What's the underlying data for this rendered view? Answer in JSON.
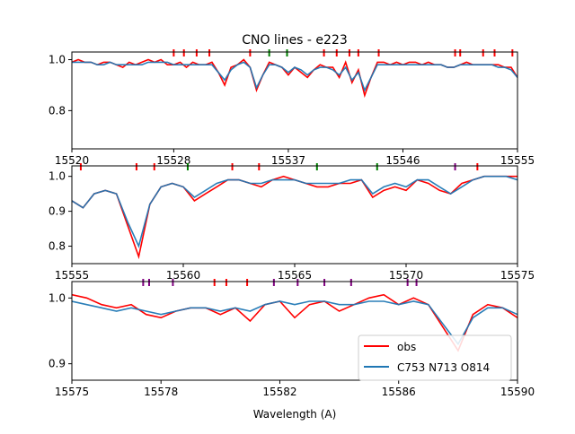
{
  "figure": {
    "title": "CNO lines - e223",
    "xlabel": "Wavelength (A)"
  },
  "colors": {
    "obs": "#ff0000",
    "model": "#1f77b4",
    "line_C": "#ff0000",
    "line_N": "#008000",
    "line_O": "#800080",
    "axes": "#000000"
  },
  "legend": {
    "placement": "lower-right",
    "entries": [
      {
        "label": "obs",
        "color": "#ff0000"
      },
      {
        "label": "C753 N713 O814",
        "color": "#1f77b4"
      }
    ]
  },
  "chart_data": [
    {
      "type": "line",
      "title": "CNO lines - e223",
      "xlim": [
        15520,
        15555
      ],
      "ylim": [
        0.65,
        1.03
      ],
      "xticks": [
        15520,
        15528,
        15537,
        15546,
        15555
      ],
      "yticks": [
        0.8,
        1.0
      ],
      "grid": false,
      "line_markers": [
        {
          "x": 15528.0,
          "color": "#ff0000"
        },
        {
          "x": 15528.8,
          "color": "#ff0000"
        },
        {
          "x": 15529.8,
          "color": "#ff0000"
        },
        {
          "x": 15530.8,
          "color": "#ff0000"
        },
        {
          "x": 15534.0,
          "color": "#ff0000"
        },
        {
          "x": 15535.5,
          "color": "#008000"
        },
        {
          "x": 15536.9,
          "color": "#008000"
        },
        {
          "x": 15539.8,
          "color": "#ff0000"
        },
        {
          "x": 15540.8,
          "color": "#ff0000"
        },
        {
          "x": 15541.8,
          "color": "#ff0000"
        },
        {
          "x": 15542.5,
          "color": "#ff0000"
        },
        {
          "x": 15544.1,
          "color": "#ff0000"
        },
        {
          "x": 15550.1,
          "color": "#ff0000"
        },
        {
          "x": 15550.5,
          "color": "#ff0000"
        },
        {
          "x": 15552.3,
          "color": "#ff0000"
        },
        {
          "x": 15553.2,
          "color": "#ff0000"
        },
        {
          "x": 15554.6,
          "color": "#ff0000"
        }
      ],
      "series": [
        {
          "name": "obs",
          "color": "#ff0000",
          "x": [
            15520,
            15520.5,
            15521,
            15521.5,
            15522,
            15522.5,
            15523,
            15523.5,
            15524,
            15524.5,
            15525,
            15525.5,
            15526,
            15526.5,
            15527,
            15527.5,
            15528,
            15528.5,
            15529,
            15529.5,
            15530,
            15530.5,
            15531,
            15531.5,
            15532,
            15532.5,
            15533,
            15533.5,
            15534,
            15534.5,
            15535,
            15535.5,
            15536,
            15536.5,
            15537,
            15537.5,
            15538,
            15538.5,
            15539,
            15539.5,
            15540,
            15540.5,
            15541,
            15541.5,
            15542,
            15542.5,
            15543,
            15543.5,
            15544,
            15544.5,
            15545,
            15545.5,
            15546,
            15546.5,
            15547,
            15547.5,
            15548,
            15548.5,
            15549,
            15549.5,
            15550,
            15550.5,
            15551,
            15551.5,
            15552,
            15552.5,
            15553,
            15553.5,
            15554,
            15554.5,
            15555
          ],
          "y": [
            0.99,
            1.0,
            0.99,
            0.99,
            0.98,
            0.99,
            0.99,
            0.98,
            0.97,
            0.99,
            0.98,
            0.99,
            1.0,
            0.99,
            1.0,
            0.98,
            0.98,
            0.99,
            0.97,
            0.99,
            0.98,
            0.98,
            0.99,
            0.95,
            0.9,
            0.97,
            0.98,
            1.0,
            0.97,
            0.88,
            0.94,
            0.99,
            0.98,
            0.97,
            0.94,
            0.97,
            0.95,
            0.93,
            0.96,
            0.98,
            0.97,
            0.97,
            0.93,
            0.99,
            0.91,
            0.96,
            0.86,
            0.93,
            0.99,
            0.99,
            0.98,
            0.99,
            0.98,
            0.99,
            0.99,
            0.98,
            0.99,
            0.98,
            0.98,
            0.97,
            0.97,
            0.98,
            0.99,
            0.98,
            0.98,
            0.98,
            0.98,
            0.98,
            0.97,
            0.97,
            0.93
          ]
        },
        {
          "name": "C753 N713 O814",
          "color": "#1f77b4",
          "x": [
            15520,
            15520.5,
            15521,
            15521.5,
            15522,
            15522.5,
            15523,
            15523.5,
            15524,
            15524.5,
            15525,
            15525.5,
            15526,
            15526.5,
            15527,
            15527.5,
            15528,
            15528.5,
            15529,
            15529.5,
            15530,
            15530.5,
            15531,
            15531.5,
            15532,
            15532.5,
            15533,
            15533.5,
            15534,
            15534.5,
            15535,
            15535.5,
            15536,
            15536.5,
            15537,
            15537.5,
            15538,
            15538.5,
            15539,
            15539.5,
            15540,
            15540.5,
            15541,
            15541.5,
            15542,
            15542.5,
            15543,
            15543.5,
            15544,
            15544.5,
            15545,
            15545.5,
            15546,
            15546.5,
            15547,
            15547.5,
            15548,
            15548.5,
            15549,
            15549.5,
            15550,
            15550.5,
            15551,
            15551.5,
            15552,
            15552.5,
            15553,
            15553.5,
            15554,
            15554.5,
            15555
          ],
          "y": [
            0.99,
            0.99,
            0.99,
            0.99,
            0.98,
            0.98,
            0.99,
            0.98,
            0.98,
            0.98,
            0.98,
            0.98,
            0.99,
            0.99,
            0.99,
            0.99,
            0.98,
            0.98,
            0.98,
            0.98,
            0.98,
            0.98,
            0.98,
            0.95,
            0.92,
            0.96,
            0.98,
            0.99,
            0.97,
            0.89,
            0.94,
            0.98,
            0.98,
            0.97,
            0.95,
            0.97,
            0.96,
            0.94,
            0.96,
            0.97,
            0.97,
            0.96,
            0.94,
            0.97,
            0.92,
            0.95,
            0.88,
            0.93,
            0.98,
            0.98,
            0.98,
            0.98,
            0.98,
            0.98,
            0.98,
            0.98,
            0.98,
            0.98,
            0.98,
            0.97,
            0.97,
            0.98,
            0.98,
            0.98,
            0.98,
            0.98,
            0.98,
            0.97,
            0.97,
            0.96,
            0.93
          ]
        }
      ]
    },
    {
      "type": "line",
      "xlim": [
        15555,
        15575
      ],
      "ylim": [
        0.75,
        1.03
      ],
      "xticks": [
        15555,
        15560,
        15565,
        15570,
        15575
      ],
      "yticks": [
        0.8,
        0.9,
        1.0
      ],
      "grid": false,
      "line_markers": [
        {
          "x": 15555.4,
          "color": "#ff0000"
        },
        {
          "x": 15557.9,
          "color": "#ff0000"
        },
        {
          "x": 15558.7,
          "color": "#ff0000"
        },
        {
          "x": 15560.2,
          "color": "#008000"
        },
        {
          "x": 15562.2,
          "color": "#ff0000"
        },
        {
          "x": 15563.4,
          "color": "#ff0000"
        },
        {
          "x": 15566.0,
          "color": "#008000"
        },
        {
          "x": 15568.7,
          "color": "#008000"
        },
        {
          "x": 15572.2,
          "color": "#800080"
        },
        {
          "x": 15573.2,
          "color": "#ff0000"
        }
      ],
      "series": [
        {
          "name": "obs",
          "color": "#ff0000",
          "x": [
            15555,
            15555.5,
            15556,
            15556.5,
            15557,
            15557.5,
            15558,
            15558.5,
            15559,
            15559.5,
            15560,
            15560.5,
            15561,
            15561.5,
            15562,
            15562.5,
            15563,
            15563.5,
            15564,
            15564.5,
            15565,
            15565.5,
            15566,
            15566.5,
            15567,
            15567.5,
            15568,
            15568.5,
            15569,
            15569.5,
            15570,
            15570.5,
            15571,
            15571.5,
            15572,
            15572.5,
            15573,
            15573.5,
            15574,
            15574.5,
            15575
          ],
          "y": [
            0.93,
            0.91,
            0.95,
            0.96,
            0.95,
            0.86,
            0.77,
            0.92,
            0.97,
            0.98,
            0.97,
            0.93,
            0.95,
            0.97,
            0.99,
            0.99,
            0.98,
            0.97,
            0.99,
            1.0,
            0.99,
            0.98,
            0.97,
            0.97,
            0.98,
            0.98,
            0.99,
            0.94,
            0.96,
            0.97,
            0.96,
            0.99,
            0.98,
            0.96,
            0.95,
            0.98,
            0.99,
            1.0,
            1.0,
            1.0,
            1.0
          ]
        },
        {
          "name": "C753 N713 O814",
          "color": "#1f77b4",
          "x": [
            15555,
            15555.5,
            15556,
            15556.5,
            15557,
            15557.5,
            15558,
            15558.5,
            15559,
            15559.5,
            15560,
            15560.5,
            15561,
            15561.5,
            15562,
            15562.5,
            15563,
            15563.5,
            15564,
            15564.5,
            15565,
            15565.5,
            15566,
            15566.5,
            15567,
            15567.5,
            15568,
            15568.5,
            15569,
            15569.5,
            15570,
            15570.5,
            15571,
            15571.5,
            15572,
            15572.5,
            15573,
            15573.5,
            15574,
            15574.5,
            15575
          ],
          "y": [
            0.93,
            0.91,
            0.95,
            0.96,
            0.95,
            0.87,
            0.8,
            0.92,
            0.97,
            0.98,
            0.97,
            0.94,
            0.96,
            0.98,
            0.99,
            0.99,
            0.98,
            0.98,
            0.99,
            0.99,
            0.99,
            0.98,
            0.98,
            0.98,
            0.98,
            0.99,
            0.99,
            0.95,
            0.97,
            0.98,
            0.97,
            0.99,
            0.99,
            0.97,
            0.95,
            0.97,
            0.99,
            1.0,
            1.0,
            1.0,
            0.99
          ]
        }
      ]
    },
    {
      "type": "line",
      "xlim": [
        15575,
        15590
      ],
      "ylim": [
        0.875,
        1.025
      ],
      "xticks": [
        15575,
        15578,
        15582,
        15586,
        15590
      ],
      "yticks": [
        0.9,
        1.0
      ],
      "grid": false,
      "line_markers": [
        {
          "x": 15577.4,
          "color": "#800080"
        },
        {
          "x": 15577.6,
          "color": "#800080"
        },
        {
          "x": 15578.4,
          "color": "#800080"
        },
        {
          "x": 15579.8,
          "color": "#ff0000"
        },
        {
          "x": 15580.2,
          "color": "#ff0000"
        },
        {
          "x": 15580.9,
          "color": "#ff0000"
        },
        {
          "x": 15581.8,
          "color": "#800080"
        },
        {
          "x": 15582.6,
          "color": "#800080"
        },
        {
          "x": 15583.5,
          "color": "#800080"
        },
        {
          "x": 15584.4,
          "color": "#800080"
        },
        {
          "x": 15586.3,
          "color": "#800080"
        },
        {
          "x": 15586.6,
          "color": "#800080"
        }
      ],
      "series": [
        {
          "name": "obs",
          "color": "#ff0000",
          "x": [
            15575,
            15575.5,
            15576,
            15576.5,
            15577,
            15577.5,
            15578,
            15578.5,
            15579,
            15579.5,
            15580,
            15580.5,
            15581,
            15581.5,
            15582,
            15582.5,
            15583,
            15583.5,
            15584,
            15584.5,
            15585,
            15585.5,
            15586,
            15586.5,
            15587,
            15587.5,
            15588,
            15588.5,
            15589,
            15589.5,
            15590
          ],
          "y": [
            1.005,
            1.0,
            0.99,
            0.985,
            0.99,
            0.975,
            0.97,
            0.98,
            0.985,
            0.985,
            0.975,
            0.985,
            0.965,
            0.99,
            0.995,
            0.97,
            0.99,
            0.995,
            0.98,
            0.99,
            1.0,
            1.005,
            0.99,
            1.0,
            0.99,
            0.955,
            0.92,
            0.975,
            0.99,
            0.985,
            0.97
          ]
        },
        {
          "name": "C753 N713 O814",
          "color": "#1f77b4",
          "x": [
            15575,
            15575.5,
            15576,
            15576.5,
            15577,
            15577.5,
            15578,
            15578.5,
            15579,
            15579.5,
            15580,
            15580.5,
            15581,
            15581.5,
            15582,
            15582.5,
            15583,
            15583.5,
            15584,
            15584.5,
            15585,
            15585.5,
            15586,
            15586.5,
            15587,
            15587.5,
            15588,
            15588.5,
            15589,
            15589.5,
            15590
          ],
          "y": [
            0.995,
            0.99,
            0.985,
            0.98,
            0.985,
            0.98,
            0.975,
            0.98,
            0.985,
            0.985,
            0.98,
            0.985,
            0.98,
            0.99,
            0.995,
            0.99,
            0.995,
            0.995,
            0.99,
            0.99,
            0.995,
            0.995,
            0.99,
            0.995,
            0.99,
            0.96,
            0.93,
            0.97,
            0.985,
            0.985,
            0.975
          ]
        }
      ]
    }
  ]
}
